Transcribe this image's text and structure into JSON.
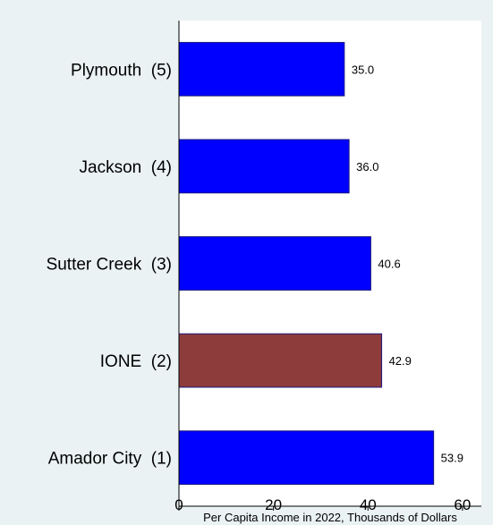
{
  "chart_data": {
    "type": "bar",
    "orientation": "horizontal",
    "title": "",
    "xlabel": "Per Capita Income in 2022, Thousands of Dollars",
    "ylabel": "",
    "xlim": [
      0,
      64
    ],
    "xticks": [
      0,
      20,
      40,
      60
    ],
    "grid": false,
    "legend": "none",
    "categories": [
      "Plymouth  (5)",
      "Jackson  (4)",
      "Sutter Creek  (3)",
      "IONE  (2)",
      "Amador City  (1)"
    ],
    "values": [
      35.0,
      36.0,
      40.6,
      42.9,
      53.9
    ],
    "value_labels": [
      "35.0",
      "36.0",
      "40.6",
      "42.9",
      "53.9"
    ],
    "colors": [
      "#0000ff",
      "#0000ff",
      "#0000ff",
      "#8e3b3b",
      "#0000ff"
    ],
    "bar_outline_color": "#1a1a80",
    "plot_background": "#ffffff",
    "page_background": "#eaf2f3"
  }
}
